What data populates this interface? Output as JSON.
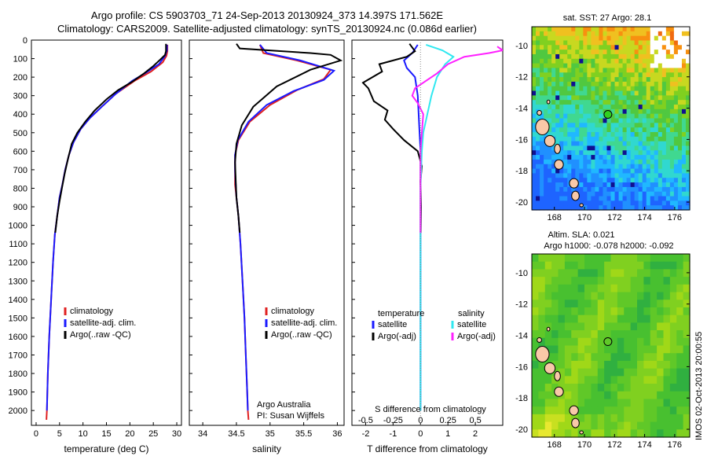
{
  "header": {
    "line1": "Argo profile: CS 5903703_71 24-Sep-2013 20130924_373 14.397S 171.562E",
    "line2": "Climatology: CARS2009. Satellite-adjusted climatology: synTS_20130924.nc (0.086d earlier)"
  },
  "footer_text": "IMOS 02-Oct-2013 20:00:55",
  "colors": {
    "climatology": "#e02020",
    "satellite": "#1a1aff",
    "argo": "#000000",
    "sal_satellite": "#30e8f0",
    "sal_argo": "#ff20ff"
  },
  "chart_data": [
    {
      "type": "line",
      "id": "temperature",
      "xlabel": "temperature (deg C)",
      "xlim": [
        -1,
        31
      ],
      "xticks": [
        0,
        5,
        10,
        15,
        20,
        25,
        30
      ],
      "ylim": [
        2080,
        0
      ],
      "yticks": [
        0,
        100,
        200,
        300,
        400,
        500,
        600,
        700,
        800,
        900,
        1000,
        1100,
        1200,
        1300,
        1400,
        1500,
        1600,
        1700,
        1800,
        1900,
        2000
      ],
      "legend": [
        "climatology",
        "satellite-adj. clim.",
        "Argo(..raw -QC)"
      ],
      "series": [
        {
          "name": "climatology",
          "color_key": "climatology",
          "points": [
            [
              28,
              25
            ],
            [
              28,
              60
            ],
            [
              27.8,
              85
            ],
            [
              27,
              120
            ],
            [
              24.5,
              170
            ],
            [
              21,
              220
            ],
            [
              17,
              290
            ],
            [
              14,
              360
            ],
            [
              11.5,
              420
            ],
            [
              9.5,
              480
            ],
            [
              8,
              550
            ],
            [
              7,
              620
            ],
            [
              6.2,
              700
            ],
            [
              5.6,
              780
            ],
            [
              5,
              850
            ],
            [
              4.5,
              950
            ],
            [
              4,
              1050
            ],
            [
              3.6,
              1200
            ],
            [
              3.2,
              1400
            ],
            [
              2.8,
              1600
            ],
            [
              2.5,
              1800
            ],
            [
              2.3,
              2000
            ],
            [
              2.2,
              2050
            ]
          ]
        },
        {
          "name": "satellite-adj. clim.",
          "color_key": "satellite",
          "points": [
            [
              27.9,
              25
            ],
            [
              27.9,
              55
            ],
            [
              27.5,
              85
            ],
            [
              26.2,
              130
            ],
            [
              23.5,
              175
            ],
            [
              20.5,
              220
            ],
            [
              17,
              290
            ],
            [
              14,
              360
            ],
            [
              11.5,
              420
            ],
            [
              9.5,
              480
            ],
            [
              8,
              550
            ],
            [
              7,
              620
            ],
            [
              6.2,
              700
            ],
            [
              5.6,
              780
            ],
            [
              5,
              850
            ],
            [
              4.5,
              950
            ],
            [
              4,
              1050
            ],
            [
              3.6,
              1200
            ],
            [
              3.2,
              1400
            ],
            [
              2.8,
              1600
            ],
            [
              2.5,
              1800
            ],
            [
              2.3,
              2000
            ]
          ]
        },
        {
          "name": "Argo(..raw -QC)",
          "color_key": "argo",
          "points": [
            [
              27.7,
              20
            ],
            [
              27.7,
              60
            ],
            [
              27.5,
              80
            ],
            [
              26.5,
              105
            ],
            [
              25,
              140
            ],
            [
              23,
              180
            ],
            [
              20.5,
              225
            ],
            [
              17.5,
              270
            ],
            [
              15,
              320
            ],
            [
              12.5,
              380
            ],
            [
              10.5,
              440
            ],
            [
              8.8,
              500
            ],
            [
              7.6,
              560
            ],
            [
              6.8,
              640
            ],
            [
              6.1,
              720
            ],
            [
              5.5,
              800
            ],
            [
              5,
              870
            ],
            [
              4.5,
              950
            ],
            [
              4.1,
              1040
            ]
          ]
        }
      ]
    },
    {
      "type": "line",
      "id": "salinity",
      "xlabel": "salinity",
      "xlim": [
        33.8,
        36.1
      ],
      "xticks": [
        34,
        34.5,
        35,
        35.5,
        36
      ],
      "ylim": [
        2080,
        0
      ],
      "legend": [
        "climatology",
        "satellite-adj. clim.",
        "Argo(..raw -QC)"
      ],
      "note1": "Argo Australia",
      "note2": "PI: Susan Wijffels",
      "series": [
        {
          "name": "climatology",
          "color_key": "climatology",
          "points": [
            [
              34.85,
              25
            ],
            [
              34.9,
              70
            ],
            [
              35.4,
              110
            ],
            [
              35.9,
              160
            ],
            [
              35.8,
              210
            ],
            [
              35.4,
              270
            ],
            [
              35.0,
              350
            ],
            [
              34.7,
              440
            ],
            [
              34.53,
              540
            ],
            [
              34.48,
              620
            ],
            [
              34.48,
              700
            ],
            [
              34.48,
              780
            ],
            [
              34.5,
              850
            ],
            [
              34.53,
              950
            ],
            [
              34.56,
              1100
            ],
            [
              34.59,
              1300
            ],
            [
              34.62,
              1500
            ],
            [
              34.64,
              1700
            ],
            [
              34.66,
              1900
            ],
            [
              34.67,
              2000
            ],
            [
              34.68,
              2050
            ]
          ]
        },
        {
          "name": "satellite-adj. clim.",
          "color_key": "satellite",
          "points": [
            [
              34.85,
              25
            ],
            [
              34.95,
              70
            ],
            [
              35.45,
              110
            ],
            [
              35.95,
              165
            ],
            [
              35.8,
              215
            ],
            [
              35.35,
              275
            ],
            [
              34.95,
              350
            ],
            [
              34.68,
              440
            ],
            [
              34.52,
              540
            ],
            [
              34.48,
              620
            ],
            [
              34.48,
              700
            ],
            [
              34.49,
              780
            ],
            [
              34.5,
              850
            ],
            [
              34.53,
              950
            ],
            [
              34.56,
              1100
            ],
            [
              34.59,
              1300
            ],
            [
              34.62,
              1500
            ],
            [
              34.64,
              1700
            ],
            [
              34.66,
              1900
            ],
            [
              34.67,
              2000
            ]
          ]
        },
        {
          "name": "Argo(..raw -QC)",
          "color_key": "argo",
          "points": [
            [
              34.5,
              20
            ],
            [
              34.55,
              45
            ],
            [
              35.6,
              70
            ],
            [
              35.9,
              80
            ],
            [
              36.05,
              110
            ],
            [
              35.6,
              160
            ],
            [
              35.1,
              250
            ],
            [
              34.75,
              360
            ],
            [
              34.58,
              460
            ],
            [
              34.5,
              560
            ],
            [
              34.48,
              660
            ],
            [
              34.49,
              760
            ],
            [
              34.5,
              850
            ],
            [
              34.53,
              950
            ],
            [
              34.55,
              1040
            ]
          ]
        }
      ]
    },
    {
      "type": "line",
      "id": "difference",
      "xlabel_top": "S difference from climatology",
      "xlabel": "T difference from climatology",
      "xlim": [
        -2.5,
        3
      ],
      "xticks": [
        -2,
        -1,
        0,
        1,
        2
      ],
      "sticks_label": [
        "-0.5",
        "-0.25",
        "0",
        "0.25",
        "0.5"
      ],
      "sticks_val": [
        -2,
        -1,
        0,
        1,
        2
      ],
      "ylim": [
        2080,
        0
      ],
      "legend_temperature_title": "temperature",
      "legend_salinity_title": "salinity",
      "legend_temperature": [
        "satellite",
        "Argo(-adj)"
      ],
      "legend_salinity": [
        "satellite",
        "Argo(-adj)"
      ],
      "series": [
        {
          "name": "T satellite",
          "color_key": "satellite",
          "points": [
            [
              -0.1,
              25
            ],
            [
              -0.3,
              70
            ],
            [
              -0.6,
              110
            ],
            [
              -0.5,
              150
            ],
            [
              -0.2,
              200
            ],
            [
              -0.1,
              300
            ],
            [
              -0.05,
              450
            ],
            [
              0,
              600
            ],
            [
              0,
              800
            ],
            [
              0,
              1200
            ],
            [
              0,
              1600
            ],
            [
              0,
              2000
            ]
          ]
        },
        {
          "name": "T Argo(-adj)",
          "color_key": "argo",
          "points": [
            [
              -0.4,
              20
            ],
            [
              -0.2,
              60
            ],
            [
              -0.5,
              90
            ],
            [
              -1.5,
              130
            ],
            [
              -1.4,
              170
            ],
            [
              -2.1,
              230
            ],
            [
              -1.9,
              260
            ],
            [
              -1.7,
              330
            ],
            [
              -1.2,
              380
            ],
            [
              -1.3,
              430
            ],
            [
              -1.0,
              480
            ],
            [
              -0.6,
              540
            ],
            [
              -0.1,
              600
            ],
            [
              0.05,
              680
            ],
            [
              0.0,
              760
            ],
            [
              0.02,
              900
            ],
            [
              0.01,
              1040
            ]
          ]
        },
        {
          "name": "S satellite",
          "color_key": "sal_satellite",
          "points": [
            [
              0.2,
              25
            ],
            [
              0.8,
              55
            ],
            [
              1.2,
              90
            ],
            [
              0.9,
              130
            ],
            [
              0.6,
              200
            ],
            [
              0.4,
              300
            ],
            [
              0.25,
              400
            ],
            [
              0.1,
              500
            ],
            [
              0.05,
              600
            ],
            [
              0,
              800
            ],
            [
              0,
              1200
            ],
            [
              0,
              1600
            ],
            [
              0,
              2000
            ]
          ]
        },
        {
          "name": "S Argo(-adj)",
          "color_key": "sal_argo",
          "points": [
            [
              2.8,
              35
            ],
            [
              3.0,
              55
            ],
            [
              2.5,
              70
            ],
            [
              1.6,
              90
            ],
            [
              1.0,
              130
            ],
            [
              0.6,
              180
            ],
            [
              0.2,
              220
            ],
            [
              -0.2,
              260
            ],
            [
              -0.3,
              300
            ],
            [
              -0.1,
              340
            ],
            [
              0.1,
              400
            ],
            [
              0.05,
              500
            ],
            [
              0,
              600
            ],
            [
              0,
              800
            ],
            [
              0,
              1040
            ]
          ]
        }
      ]
    },
    {
      "type": "heatmap",
      "id": "sst_map",
      "title": "sat. SST: 27 Argo: 28.1",
      "xlim": [
        166.5,
        177
      ],
      "ylim": [
        -20.5,
        -8.8
      ],
      "xticks": [
        168,
        170,
        172,
        174,
        176
      ],
      "yticks": [
        -10,
        -12,
        -14,
        -16,
        -18,
        -20
      ],
      "argo_position": [
        171.56,
        -14.4
      ]
    },
    {
      "type": "heatmap",
      "id": "sla_map",
      "title": "Altim. SLA: 0.021",
      "subtitle": "Argo h1000: -0.078 h2000: -0.092",
      "xlim": [
        166.5,
        177
      ],
      "ylim": [
        -20.5,
        -8.8
      ],
      "xticks": [
        168,
        170,
        172,
        174,
        176
      ],
      "yticks": [
        -10,
        -12,
        -14,
        -16,
        -18,
        -20
      ],
      "argo_position": [
        171.56,
        -14.4
      ]
    }
  ]
}
